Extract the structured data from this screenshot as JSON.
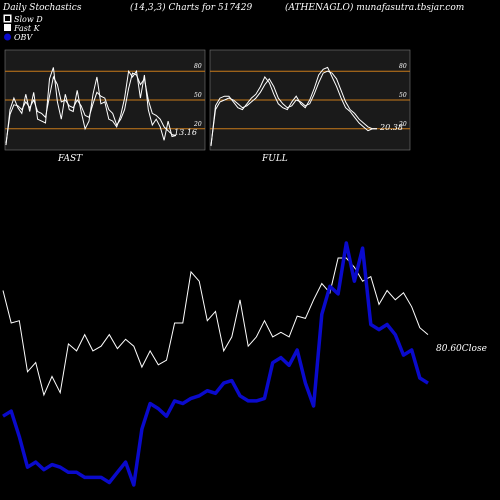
{
  "header": {
    "left": "Daily Stochastics",
    "middle": "(14,3,3) Charts for 517429",
    "right": "(ATHENAGLO) munafasutra.tbsjar.com"
  },
  "legend": {
    "slow_d": "Slow  D",
    "fast_k": "Fast K",
    "obv": "OBV"
  },
  "colors": {
    "background": "#000000",
    "panel_bg": "#1a1a1a",
    "level_line": "#c87a1a",
    "line": "#ffffff",
    "obv": "#0a0acc"
  },
  "chart_data": [
    {
      "type": "line",
      "name": "FAST",
      "label": "FAST",
      "levels": [
        "80",
        "50",
        "20"
      ],
      "level_values": [
        80,
        50,
        20
      ],
      "ylim": [
        0,
        100
      ],
      "last_value_label": "13.16",
      "series": [
        {
          "name": "Slow  D",
          "values": [
            5,
            35,
            45,
            44,
            40,
            48,
            42,
            50,
            38,
            36,
            32,
            54,
            74,
            66,
            48,
            50,
            44,
            42,
            50,
            44,
            34,
            32,
            46,
            58,
            54,
            52,
            40,
            36,
            24,
            30,
            40,
            62,
            78,
            76,
            66,
            72,
            50,
            36,
            34,
            30,
            22,
            18,
            14,
            13
          ]
        },
        {
          "name": "Fast K",
          "values": [
            3,
            40,
            52,
            42,
            36,
            56,
            38,
            58,
            30,
            28,
            26,
            72,
            84,
            48,
            30,
            56,
            40,
            38,
            60,
            38,
            20,
            28,
            56,
            74,
            46,
            48,
            30,
            28,
            22,
            34,
            52,
            80,
            74,
            80,
            52,
            76,
            40,
            24,
            30,
            22,
            8,
            28,
            12,
            13
          ]
        }
      ]
    },
    {
      "type": "line",
      "name": "FULL",
      "label": "FULL",
      "levels": [
        "80",
        "50",
        "20"
      ],
      "level_values": [
        80,
        50,
        20
      ],
      "ylim": [
        0,
        100
      ],
      "last_value_label": "20.38",
      "series": [
        {
          "name": "Slow  D",
          "values": [
            3,
            40,
            48,
            50,
            52,
            50,
            46,
            42,
            44,
            48,
            52,
            58,
            66,
            72,
            64,
            52,
            46,
            42,
            44,
            50,
            48,
            44,
            46,
            56,
            68,
            78,
            80,
            78,
            72,
            60,
            48,
            40,
            36,
            30,
            26,
            22,
            20,
            20
          ]
        },
        {
          "name": "Fast K",
          "values": [
            2,
            44,
            52,
            54,
            54,
            48,
            42,
            40,
            46,
            52,
            56,
            64,
            74,
            68,
            56,
            46,
            42,
            40,
            48,
            54,
            46,
            42,
            50,
            62,
            76,
            82,
            84,
            74,
            64,
            52,
            42,
            38,
            32,
            26,
            22,
            18,
            20,
            20
          ]
        }
      ]
    },
    {
      "type": "line",
      "name": "Price and OBV",
      "last_value_label": "80.60",
      "close_label": "Close",
      "series": [
        {
          "name": "Close",
          "values": [
            82.5,
            81.1,
            81.2,
            79.0,
            79.4,
            78.0,
            78.8,
            78.1,
            80.2,
            79.9,
            80.6,
            79.9,
            80.1,
            80.6,
            80.0,
            80.4,
            80.1,
            79.2,
            79.9,
            79.3,
            79.5,
            81.1,
            81.1,
            83.3,
            82.9,
            81.2,
            81.6,
            79.9,
            80.5,
            82.1,
            80.1,
            80.5,
            81.2,
            80.5,
            80.7,
            80.5,
            81.4,
            81.3,
            82.1,
            82.8,
            82.4,
            83.9,
            83.9,
            83.5,
            82.9,
            83.1,
            81.9,
            82.5,
            82.1,
            82.4,
            81.8,
            80.9,
            80.6
          ]
        },
        {
          "name": "OBV",
          "values": [
            -1.8,
            -1.6,
            -2.6,
            -3.8,
            -3.6,
            -3.9,
            -3.7,
            -3.8,
            -4.0,
            -4.0,
            -4.2,
            -4.2,
            -4.2,
            -4.4,
            -4.0,
            -3.6,
            -4.5,
            -2.3,
            -1.3,
            -1.5,
            -1.8,
            -1.2,
            -1.3,
            -1.1,
            -1.0,
            -0.8,
            -0.9,
            -0.5,
            -0.4,
            -1.0,
            -1.2,
            -1.2,
            -1.1,
            0.3,
            0.5,
            0.2,
            0.8,
            -0.5,
            -1.4,
            2.2,
            3.3,
            3.0,
            5.0,
            3.5,
            4.8,
            1.8,
            1.6,
            1.8,
            1.4,
            0.6,
            0.8,
            -0.3,
            -0.5
          ]
        }
      ]
    }
  ]
}
